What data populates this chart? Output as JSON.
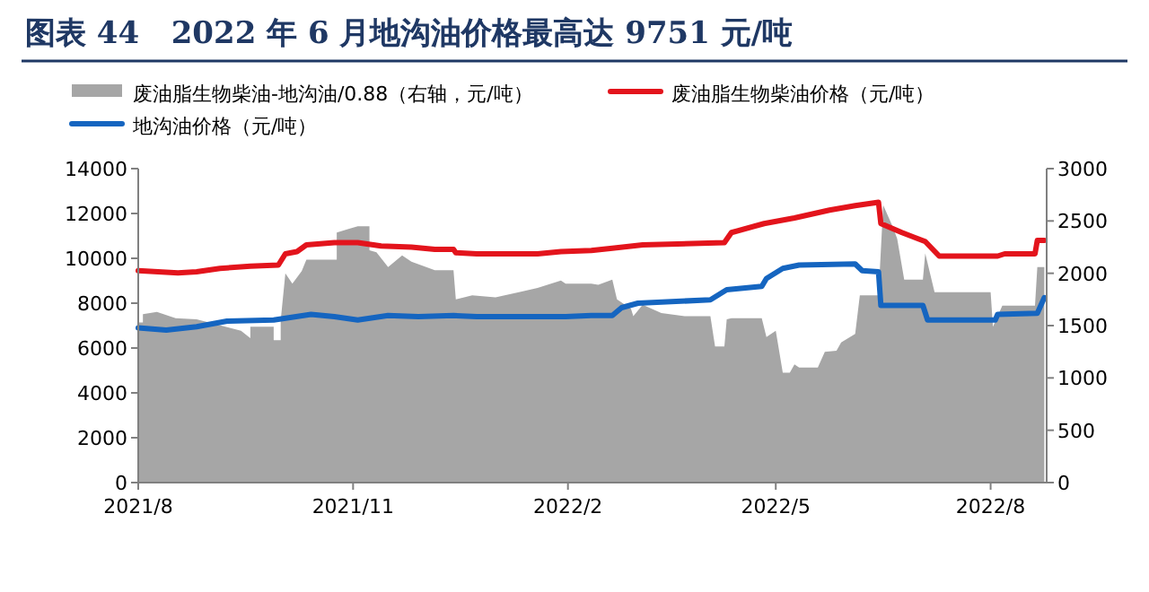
{
  "chart_data": {
    "type": "line",
    "title": "图表 44   2022 年 6 月地沟油价格最高达 9751 元/吨",
    "legend": "top",
    "xlim": [
      "2021-08-01",
      "2022-08-25"
    ],
    "xticks": [
      {
        "value": "2021-08-01",
        "label": "2021/8"
      },
      {
        "value": "2021-11-01",
        "label": "2021/11"
      },
      {
        "value": "2022-02-01",
        "label": "2022/2"
      },
      {
        "value": "2022-05-01",
        "label": "2022/5"
      },
      {
        "value": "2022-08-01",
        "label": "2022/8"
      }
    ],
    "ylim": [
      0,
      14000
    ],
    "yticks": [
      0,
      2000,
      4000,
      6000,
      8000,
      10000,
      12000,
      14000
    ],
    "y2lim": [
      0,
      3000
    ],
    "y2ticks": [
      0,
      500,
      1000,
      1500,
      2000,
      2500,
      3000
    ],
    "series": [
      {
        "name": "废油脂生物柴油-地沟油/0.88（右轴，元/吨）",
        "type": "area",
        "axis": "y2",
        "color": "#a6a6a6",
        "x": [
          "2021-08-01",
          "2021-08-03",
          "2021-08-03",
          "2021-08-09",
          "2021-08-17",
          "2021-08-26",
          "2021-09-14",
          "2021-09-18",
          "2021-09-18",
          "2021-09-28",
          "2021-09-28",
          "2021-10-01",
          "2021-10-01",
          "2021-10-03",
          "2021-10-06",
          "2021-10-10",
          "2021-10-12",
          "2021-10-25",
          "2021-10-25",
          "2021-11-03",
          "2021-11-08",
          "2021-11-08",
          "2021-11-11",
          "2021-11-16",
          "2021-11-22",
          "2021-11-26",
          "2021-12-06",
          "2021-12-14",
          "2021-12-15",
          "2021-12-22",
          "2022-01-01",
          "2022-01-11",
          "2022-01-19",
          "2022-01-29",
          "2022-01-31",
          "2022-02-11",
          "2022-02-14",
          "2022-02-20",
          "2022-02-22",
          "2022-02-28",
          "2022-03-01",
          "2022-03-05",
          "2022-03-13",
          "2022-03-23",
          "2022-04-03",
          "2022-04-05",
          "2022-04-09",
          "2022-04-10",
          "2022-04-12",
          "2022-04-25",
          "2022-04-27",
          "2022-05-01",
          "2022-05-04",
          "2022-05-07",
          "2022-05-09",
          "2022-05-11",
          "2022-05-19",
          "2022-05-22",
          "2022-05-27",
          "2022-05-29",
          "2022-06-04",
          "2022-06-06",
          "2022-06-14",
          "2022-06-16",
          "2022-06-20",
          "2022-06-22",
          "2022-06-25",
          "2022-07-03",
          "2022-07-04",
          "2022-07-08",
          "2022-08-01",
          "2022-08-02",
          "2022-08-06",
          "2022-08-20",
          "2022-08-21",
          "2022-08-24"
        ],
        "values": [
          1530,
          1530,
          1610,
          1630,
          1570,
          1560,
          1450,
          1380,
          1490,
          1490,
          1360,
          1360,
          1550,
          2000,
          1900,
          2020,
          2130,
          2130,
          2390,
          2450,
          2450,
          2220,
          2200,
          2060,
          2170,
          2110,
          2030,
          2030,
          1750,
          1790,
          1770,
          1820,
          1860,
          1930,
          1900,
          1900,
          1890,
          1940,
          1750,
          1660,
          1590,
          1700,
          1620,
          1590,
          1590,
          1300,
          1300,
          1560,
          1570,
          1570,
          1390,
          1450,
          1050,
          1050,
          1130,
          1100,
          1100,
          1250,
          1260,
          1340,
          1420,
          1790,
          1790,
          2650,
          2450,
          2330,
          1940,
          1940,
          2190,
          1820,
          1820,
          1490,
          1690,
          1690,
          2060,
          2060
        ]
      },
      {
        "name": "废油脂生物柴油价格（元/吨）",
        "color": "#e3141c",
        "x": [
          "2021-08-01",
          "2021-08-18",
          "2021-08-26",
          "2021-09-05",
          "2021-09-18",
          "2021-09-30",
          "2021-10-03",
          "2021-10-08",
          "2021-10-12",
          "2021-10-24",
          "2021-11-03",
          "2021-11-13",
          "2021-11-26",
          "2021-12-06",
          "2021-12-14",
          "2021-12-15",
          "2021-12-24",
          "2022-01-19",
          "2022-01-29",
          "2022-02-11",
          "2022-02-20",
          "2022-03-05",
          "2022-04-09",
          "2022-04-12",
          "2022-04-26",
          "2022-05-09",
          "2022-05-24",
          "2022-06-04",
          "2022-06-14",
          "2022-06-15",
          "2022-06-24",
          "2022-07-04",
          "2022-07-10",
          "2022-08-04",
          "2022-08-07",
          "2022-08-20",
          "2022-08-21",
          "2022-08-24"
        ],
        "values": [
          9450,
          9350,
          9400,
          9550,
          9650,
          9700,
          10200,
          10300,
          10600,
          10700,
          10700,
          10550,
          10500,
          10400,
          10400,
          10250,
          10200,
          10200,
          10300,
          10350,
          10450,
          10600,
          10700,
          11150,
          11550,
          11800,
          12150,
          12350,
          12500,
          11550,
          11150,
          10750,
          10100,
          10100,
          10200,
          10200,
          10800,
          10800
        ]
      },
      {
        "name": "地沟油价格（元/吨）",
        "color": "#1565c0",
        "x": [
          "2021-08-01",
          "2021-08-13",
          "2021-08-26",
          "2021-09-08",
          "2021-09-28",
          "2021-10-14",
          "2021-10-24",
          "2021-11-03",
          "2021-11-16",
          "2021-11-29",
          "2021-12-14",
          "2021-12-24",
          "2022-01-31",
          "2022-02-11",
          "2022-02-20",
          "2022-02-24",
          "2022-03-03",
          "2022-04-03",
          "2022-04-10",
          "2022-04-25",
          "2022-04-27",
          "2022-05-04",
          "2022-05-11",
          "2022-06-04",
          "2022-06-07",
          "2022-06-14",
          "2022-06-15",
          "2022-07-03",
          "2022-07-05",
          "2022-08-03",
          "2022-08-04",
          "2022-08-21",
          "2022-08-24"
        ],
        "values": [
          6900,
          6800,
          6950,
          7200,
          7250,
          7500,
          7400,
          7250,
          7450,
          7400,
          7450,
          7400,
          7400,
          7450,
          7450,
          7800,
          8000,
          8150,
          8600,
          8750,
          9100,
          9550,
          9700,
          9751,
          9450,
          9400,
          7900,
          7900,
          7250,
          7250,
          7500,
          7550,
          8250
        ]
      }
    ]
  }
}
